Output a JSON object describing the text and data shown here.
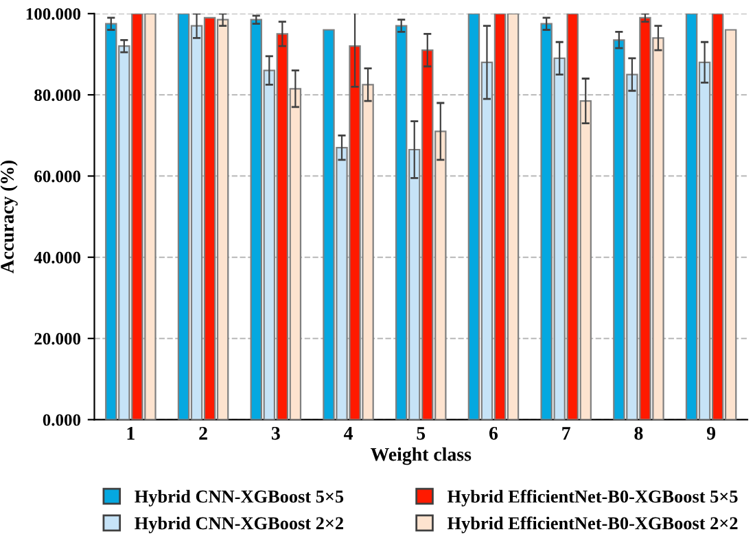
{
  "chart_data": {
    "type": "bar",
    "xlabel": "Weight class",
    "ylabel": "Accuracy (%)",
    "categories": [
      "1",
      "2",
      "3",
      "4",
      "5",
      "6",
      "7",
      "8",
      "9"
    ],
    "series": [
      {
        "name": "Hybrid CNN-XGBoost 5×5",
        "color": "#05a8e0",
        "values": [
          97.5,
          100,
          98.5,
          96,
          97,
          100,
          97.5,
          93.5,
          100
        ],
        "errors": [
          1.5,
          null,
          1,
          null,
          1.5,
          null,
          1.5,
          2,
          null
        ]
      },
      {
        "name": "Hybrid CNN-XGBoost 2×2",
        "color": "#c6e3f7",
        "values": [
          92,
          97,
          86,
          67,
          66.5,
          88,
          89,
          85,
          88
        ],
        "errors": [
          1.5,
          3,
          3.5,
          3,
          7,
          9,
          4,
          4,
          5
        ]
      },
      {
        "name": "Hybrid EfficientNet-B0-XGBoost 5×5",
        "color": "#ff1a00",
        "values": [
          100,
          99,
          95,
          92,
          91,
          100,
          100,
          99,
          100
        ],
        "errors": [
          null,
          null,
          3,
          10,
          4,
          null,
          null,
          1,
          null
        ]
      },
      {
        "name": "Hybrid EfficientNet-B0-XGBoost 2×2",
        "color": "#fde3cf",
        "values": [
          100,
          98.5,
          81.5,
          82.5,
          71,
          100,
          78.5,
          94,
          96
        ],
        "errors": [
          null,
          1.5,
          4.5,
          4,
          7,
          null,
          5.5,
          3,
          null
        ]
      }
    ],
    "ylim": [
      0,
      100
    ],
    "yticks": [
      {
        "value": 0,
        "label": "0.000"
      },
      {
        "value": 20,
        "label": "20.000"
      },
      {
        "value": 40,
        "label": "40.000"
      },
      {
        "value": 60,
        "label": "60.000"
      },
      {
        "value": 80,
        "label": "80.000"
      },
      {
        "value": 100,
        "label": "100.000"
      }
    ],
    "grid": "y",
    "legend": "bottom"
  }
}
